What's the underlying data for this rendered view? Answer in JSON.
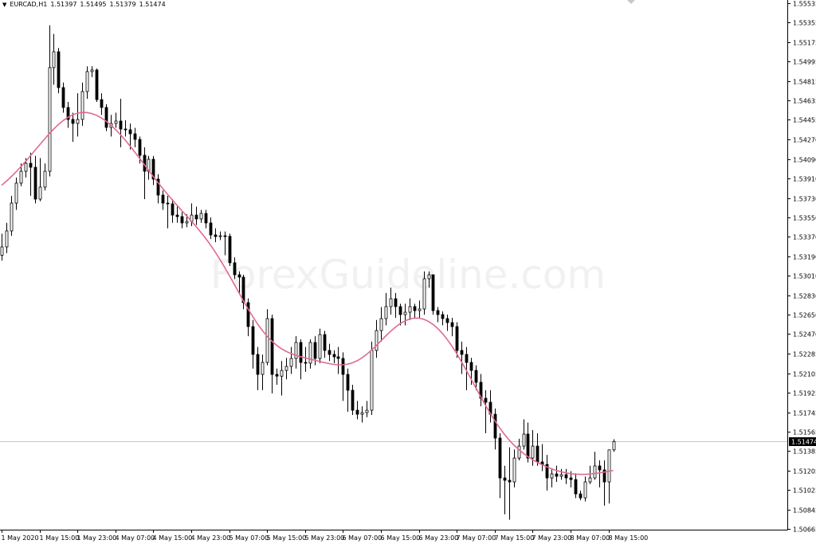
{
  "header": {
    "symbol": "EURCAD,H1",
    "open": "1.51397",
    "high": "1.51495",
    "low": "1.51379",
    "close": "1.51474",
    "menu_icon": "triangle-down-icon"
  },
  "watermark": "ForexGuideline.com",
  "colors": {
    "background": "#ffffff",
    "bull_fill": "#ffffff",
    "bear_fill": "#000000",
    "moving_average": "#e06a92",
    "price_line": "#c8c8c8",
    "price_label_bg": "#000000",
    "price_label_text": "#ffffff"
  },
  "chart_data": {
    "type": "candlestick",
    "symbol": "EURCAD",
    "timeframe": "H1",
    "ylim": [
      1.50665,
      1.55535
    ],
    "grid": false,
    "current_price": "1.51474",
    "y_ticks": [
      "1.55535",
      "1.55355",
      "1.55175",
      "1.54995",
      "1.54815",
      "1.54635",
      "1.54455",
      "1.54270",
      "1.54090",
      "1.53910",
      "1.53730",
      "1.53550",
      "1.53370",
      "1.53190",
      "1.53010",
      "1.52830",
      "1.52650",
      "1.52470",
      "1.52285",
      "1.52105",
      "1.51925",
      "1.51745",
      "1.51565",
      "1.51385",
      "1.51205",
      "1.51025",
      "1.50845",
      "1.50665"
    ],
    "x_ticks": [
      {
        "bar": 0,
        "label": "1 May 2020"
      },
      {
        "bar": 8,
        "label": "1 May 15:00"
      },
      {
        "bar": 16,
        "label": "1 May 23:00"
      },
      {
        "bar": 24,
        "label": "4 May 07:00"
      },
      {
        "bar": 32,
        "label": "4 May 15:00"
      },
      {
        "bar": 40,
        "label": "4 May 23:00"
      },
      {
        "bar": 48,
        "label": "5 May 07:00"
      },
      {
        "bar": 56,
        "label": "5 May 15:00"
      },
      {
        "bar": 64,
        "label": "5 May 23:00"
      },
      {
        "bar": 72,
        "label": "6 May 07:00"
      },
      {
        "bar": 80,
        "label": "6 May 15:00"
      },
      {
        "bar": 88,
        "label": "6 May 23:00"
      },
      {
        "bar": 96,
        "label": "7 May 07:00"
      },
      {
        "bar": 104,
        "label": "7 May 15:00"
      },
      {
        "bar": 112,
        "label": "7 May 23:00"
      },
      {
        "bar": 120,
        "label": "8 May 07:00"
      },
      {
        "bar": 128,
        "label": "8 May 15:00"
      }
    ],
    "first_open": 1.532,
    "close": [
      1.53277,
      1.53425,
      1.53683,
      1.53868,
      1.53978,
      1.54052,
      1.54015,
      1.5372,
      1.53831,
      1.53978,
      1.54938,
      1.55085,
      1.54753,
      1.54569,
      1.54458,
      1.54421,
      1.54458,
      1.54716,
      1.54901,
      1.54916,
      1.54642,
      1.54569,
      1.54384,
      1.54421,
      1.54443,
      1.54369,
      1.54362,
      1.54325,
      1.54273,
      1.54126,
      1.53978,
      1.54089,
      1.53905,
      1.53757,
      1.53683,
      1.53676,
      1.53572,
      1.53558,
      1.53499,
      1.53513,
      1.53572,
      1.53536,
      1.53587,
      1.53499,
      1.53388,
      1.53373,
      1.5338,
      1.53375,
      1.5313,
      1.53019,
      1.52997,
      1.52761,
      1.52539,
      1.52281,
      1.52096,
      1.52207,
      1.52613,
      1.52096,
      1.5208,
      1.52133,
      1.5217,
      1.52244,
      1.52392,
      1.52207,
      1.522,
      1.52392,
      1.52244,
      1.52465,
      1.52318,
      1.52281,
      1.52259,
      1.52244,
      1.52096,
      1.51949,
      1.51764,
      1.51727,
      1.51742,
      1.51764,
      1.52318,
      1.52502,
      1.52613,
      1.52724,
      1.52797,
      1.52724,
      1.5265,
      1.52672,
      1.52724,
      1.52687,
      1.52702,
      1.52982,
      1.53019,
      1.52687,
      1.5265,
      1.52613,
      1.52576,
      1.52539,
      1.52318,
      1.52281,
      1.52207,
      1.52133,
      1.52023,
      1.51875,
      1.51838,
      1.51727,
      1.51506,
      1.51137,
      1.51115,
      1.511,
      1.51321,
      1.51432,
      1.51543,
      1.51321,
      1.51432,
      1.51285,
      1.51262,
      1.51137,
      1.51174,
      1.51152,
      1.51167,
      1.51137,
      1.51122,
      1.50989,
      1.50952,
      1.511,
      1.51137,
      1.51248,
      1.51211,
      1.511,
      1.51397,
      1.51474
    ],
    "high": [
      1.534,
      1.535,
      1.5375,
      1.5392,
      1.5405,
      1.541,
      1.5415,
      1.5412,
      1.541,
      1.5405,
      1.5533,
      1.5525,
      1.5512,
      1.548,
      1.5462,
      1.5452,
      1.547,
      1.548,
      1.5495,
      1.5495,
      1.5493,
      1.547,
      1.546,
      1.545,
      1.5452,
      1.5465,
      1.5445,
      1.5442,
      1.5438,
      1.543,
      1.542,
      1.5412,
      1.5412,
      1.5395,
      1.538,
      1.5375,
      1.5372,
      1.5365,
      1.536,
      1.5358,
      1.5368,
      1.5365,
      1.5362,
      1.5362,
      1.5355,
      1.5345,
      1.5342,
      1.5342,
      1.534,
      1.5318,
      1.5305,
      1.5302,
      1.528,
      1.526,
      1.5235,
      1.5228,
      1.527,
      1.5265,
      1.5215,
      1.5222,
      1.5225,
      1.5235,
      1.5245,
      1.5242,
      1.5235,
      1.5242,
      1.5245,
      1.5252,
      1.525,
      1.5238,
      1.5232,
      1.5235,
      1.523,
      1.5215,
      1.52,
      1.5185,
      1.518,
      1.5185,
      1.524,
      1.526,
      1.5272,
      1.5285,
      1.529,
      1.5285,
      1.5275,
      1.5275,
      1.528,
      1.5275,
      1.5278,
      1.5305,
      1.5305,
      1.53,
      1.5272,
      1.5268,
      1.5265,
      1.5262,
      1.5258,
      1.524,
      1.5235,
      1.5225,
      1.5218,
      1.521,
      1.5195,
      1.5195,
      1.5178,
      1.5155,
      1.5125,
      1.5142,
      1.514,
      1.515,
      1.5168,
      1.5165,
      1.5158,
      1.5155,
      1.5145,
      1.5135,
      1.5122,
      1.5125,
      1.5122,
      1.5122,
      1.512,
      1.5118,
      1.5102,
      1.5115,
      1.5125,
      1.5138,
      1.513,
      1.513,
      1.514,
      1.51495
    ],
    "low": [
      1.5315,
      1.5322,
      1.5338,
      1.5362,
      1.5384,
      1.5392,
      1.5375,
      1.5368,
      1.537,
      1.538,
      1.5393,
      1.5478,
      1.547,
      1.5452,
      1.5438,
      1.5425,
      1.543,
      1.544,
      1.5465,
      1.5485,
      1.5462,
      1.545,
      1.5435,
      1.543,
      1.5438,
      1.542,
      1.543,
      1.5418,
      1.542,
      1.5405,
      1.5372,
      1.539,
      1.5385,
      1.5368,
      1.5362,
      1.5345,
      1.535,
      1.535,
      1.5345,
      1.5346,
      1.5347,
      1.5348,
      1.535,
      1.5345,
      1.5335,
      1.5332,
      1.5334,
      1.532,
      1.531,
      1.5298,
      1.5285,
      1.527,
      1.5245,
      1.5215,
      1.5195,
      1.5195,
      1.5218,
      1.5192,
      1.52,
      1.519,
      1.5205,
      1.521,
      1.5215,
      1.5205,
      1.5212,
      1.5215,
      1.5218,
      1.522,
      1.5225,
      1.5222,
      1.522,
      1.521,
      1.5185,
      1.5175,
      1.5172,
      1.5168,
      1.5165,
      1.517,
      1.5172,
      1.5225,
      1.524,
      1.5255,
      1.5265,
      1.5262,
      1.5255,
      1.5255,
      1.526,
      1.5262,
      1.5262,
      1.5265,
      1.529,
      1.5265,
      1.5258,
      1.5255,
      1.525,
      1.5245,
      1.5225,
      1.521,
      1.5195,
      1.52,
      1.5195,
      1.518,
      1.5155,
      1.5165,
      1.514,
      1.5095,
      1.508,
      1.5075,
      1.5105,
      1.513,
      1.514,
      1.5128,
      1.5125,
      1.5125,
      1.512,
      1.5102,
      1.5105,
      1.511,
      1.5112,
      1.5108,
      1.5105,
      1.5095,
      1.5093,
      1.5092,
      1.5108,
      1.5112,
      1.5105,
      1.5088,
      1.509,
      1.51379
    ]
  }
}
